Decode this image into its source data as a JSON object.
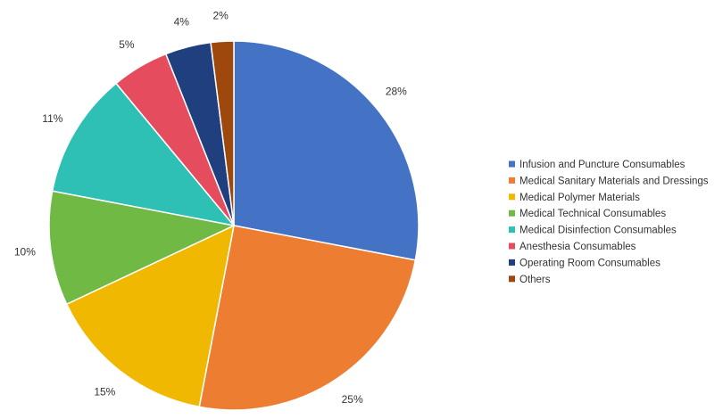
{
  "chart_data": {
    "type": "pie",
    "title": "",
    "legend_position": "right",
    "slices": [
      {
        "label": "Infusion and Puncture Consumables",
        "value": 28,
        "pct_label": "28%",
        "color": "#4472c4"
      },
      {
        "label": "Medical Sanitary Materials and Dressings",
        "value": 25,
        "pct_label": "25%",
        "color": "#ed7d31"
      },
      {
        "label": "Medical Polymer Materials",
        "value": 15,
        "pct_label": "15%",
        "color": "#f0b800"
      },
      {
        "label": "Medical Technical Consumables",
        "value": 10,
        "pct_label": "10%",
        "color": "#70b944"
      },
      {
        "label": "Medical Disinfection Consumables",
        "value": 11,
        "pct_label": "11%",
        "color": "#2ec0b5"
      },
      {
        "label": "Anesthesia Consumables",
        "value": 5,
        "pct_label": "5%",
        "color": "#e54c5e"
      },
      {
        "label": "Operating Room Consumables",
        "value": 4,
        "pct_label": "4%",
        "color": "#203f7e"
      },
      {
        "label": "Others",
        "value": 2,
        "pct_label": "2%",
        "color": "#9e480e"
      }
    ]
  }
}
